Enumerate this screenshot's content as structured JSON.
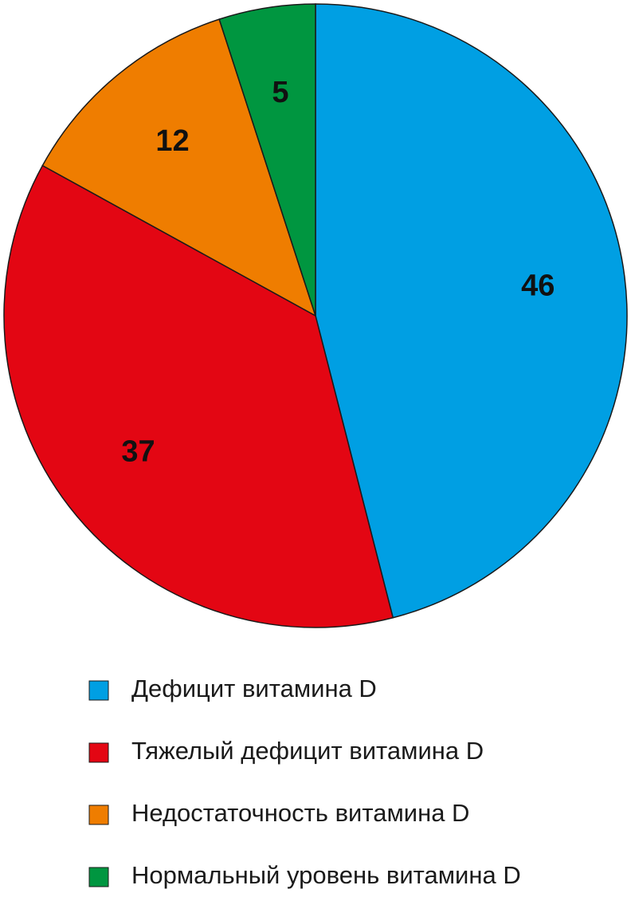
{
  "chart_data": {
    "type": "pie",
    "categories": [
      "Дефицит витамина D",
      "Тяжелый дефицит витамина D",
      "Недостаточность витамина D",
      "Нормальный уровень витамина D"
    ],
    "values": [
      46,
      37,
      12,
      5
    ],
    "colors": [
      "#009fe3",
      "#e30613",
      "#ef7d00",
      "#009640"
    ]
  }
}
